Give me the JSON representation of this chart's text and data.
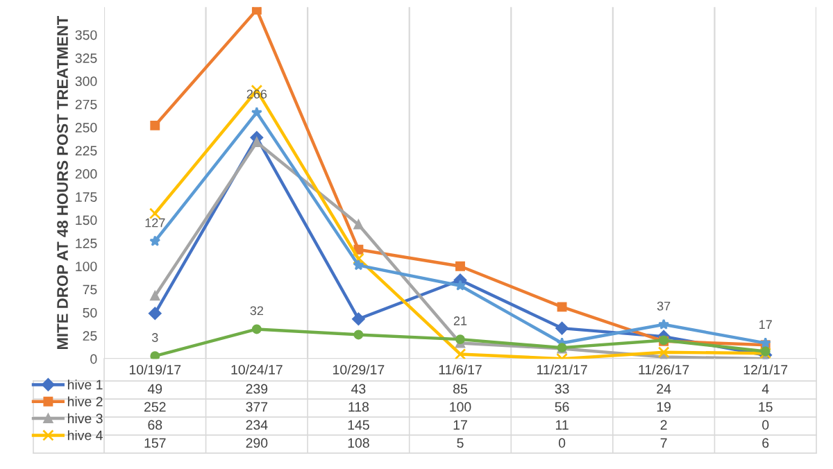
{
  "chart_data": {
    "type": "line",
    "ylabel": "MITE DROP AT 48 HOURS POST TREATMENT",
    "categories": [
      "10/19/17",
      "10/24/17",
      "10/29/17",
      "11/6/17",
      "11/21/17",
      "11/26/17",
      "12/1/17"
    ],
    "ylim": [
      0,
      380
    ],
    "yticks": [
      0,
      25,
      50,
      75,
      100,
      125,
      150,
      175,
      200,
      225,
      250,
      275,
      300,
      325,
      350
    ],
    "grid": "x",
    "data_labels": true,
    "legend": "bottom left",
    "series": [
      {
        "name": "hive 1",
        "color": "#4472c4",
        "marker": "diamond",
        "values": [
          49,
          239,
          43,
          85,
          33,
          24,
          4
        ]
      },
      {
        "name": "hive 2",
        "color": "#ed7d31",
        "marker": "square",
        "values": [
          252,
          377,
          118,
          100,
          56,
          19,
          15
        ]
      },
      {
        "name": "hive 3",
        "color": "#a5a5a5",
        "marker": "triangle",
        "values": [
          68,
          234,
          145,
          17,
          11,
          2,
          0
        ]
      },
      {
        "name": "hive 4",
        "color": "#ffc000",
        "marker": "cross",
        "values": [
          157,
          290,
          108,
          5,
          0,
          7,
          6
        ]
      },
      {
        "color": "#5b9bd5",
        "marker": "star",
        "values": [
          127,
          266,
          101,
          79,
          17,
          37,
          17
        ],
        "value_labels": [
          "127",
          "266",
          null,
          null,
          null,
          "37",
          "17"
        ]
      },
      {
        "color": "#70ad47",
        "marker": "circle",
        "values": [
          3,
          32,
          26,
          21,
          12,
          20,
          8
        ],
        "value_labels": [
          "3",
          "32",
          null,
          "21",
          null,
          null,
          null
        ]
      }
    ]
  }
}
